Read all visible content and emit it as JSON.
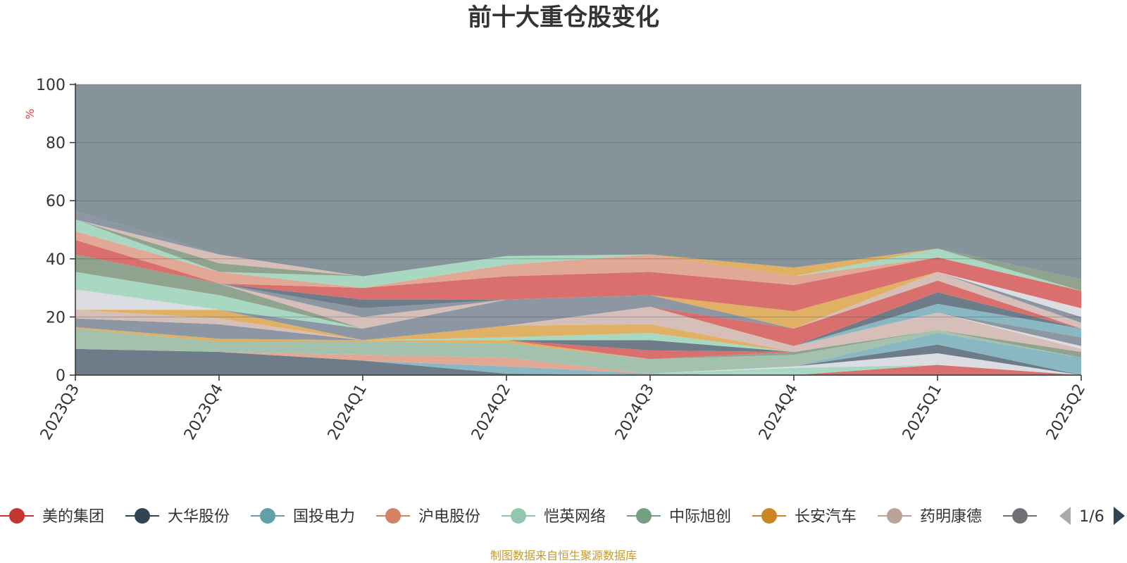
{
  "chart_data": {
    "type": "area",
    "stacked": true,
    "title": "前十大重仓股变化",
    "ylabel": "%",
    "ylim": [
      0,
      100
    ],
    "yticks": [
      0,
      20,
      40,
      60,
      80,
      100
    ],
    "grid": true,
    "x": [
      "2023Q3",
      "2023Q4",
      "2024Q1",
      "2024Q2",
      "2024Q3",
      "2024Q4",
      "2025Q1",
      "2025Q2"
    ],
    "series": [
      {
        "name": "",
        "color": "#6e7c8a",
        "values": [
          9,
          8,
          5,
          0.5,
          0,
          0,
          0,
          0
        ]
      },
      {
        "name": "",
        "color": "#8ab8c2",
        "values": [
          0,
          0,
          0,
          2.5,
          0.5,
          0,
          0,
          0
        ]
      },
      {
        "name": "",
        "color": "#e2a896",
        "values": [
          0,
          0,
          2,
          3,
          0,
          0,
          0,
          0
        ]
      },
      {
        "name": "美的集团",
        "color": "#d9706d",
        "values": [
          0,
          0,
          0,
          0,
          0,
          0,
          3.5,
          0
        ]
      },
      {
        "name": "",
        "color": "#a8d8c1",
        "values": [
          0,
          0,
          0,
          0,
          0,
          2.5,
          0,
          0
        ]
      },
      {
        "name": "",
        "color": "#dcdde3",
        "values": [
          0,
          0,
          0,
          0,
          0,
          0.5,
          4,
          0
        ]
      },
      {
        "name": "",
        "color": "#6e7c8a",
        "values": [
          0,
          0,
          0,
          0,
          0,
          0,
          3,
          0
        ]
      },
      {
        "name": "",
        "color": "#8ab8c2",
        "values": [
          0,
          0,
          0,
          0,
          0,
          0,
          4,
          6
        ]
      },
      {
        "name": "",
        "color": "#a3c1ad",
        "values": [
          7,
          3.5,
          4.5,
          5,
          5,
          4,
          1,
          0
        ]
      },
      {
        "name": "",
        "color": "#e0b065",
        "values": [
          0.5,
          1,
          0.5,
          1,
          0,
          0,
          0,
          0
        ]
      },
      {
        "name": "",
        "color": "#8fa38f",
        "values": [
          0,
          0,
          0,
          0,
          0,
          1,
          0,
          2
        ]
      },
      {
        "name": "",
        "color": "#d9706d",
        "values": [
          0,
          0,
          0,
          0,
          3,
          0,
          0,
          0
        ]
      },
      {
        "name": "",
        "color": "#6e7c8a",
        "values": [
          0,
          0,
          0,
          0,
          3.5,
          0,
          0,
          0
        ]
      },
      {
        "name": "",
        "color": "#a8d8c1",
        "values": [
          0,
          0,
          0,
          1,
          2.5,
          0,
          0,
          0
        ]
      },
      {
        "name": "",
        "color": "#d6bfb8",
        "values": [
          0,
          0,
          0,
          0,
          0,
          0,
          6,
          1
        ]
      },
      {
        "name": "",
        "color": "#e0b065",
        "values": [
          0,
          0,
          0,
          4,
          3,
          0,
          0,
          0
        ]
      },
      {
        "name": "",
        "color": "#dcdde3",
        "values": [
          0,
          0,
          0,
          0,
          0,
          0,
          0,
          1
        ]
      },
      {
        "name": "",
        "color": "#8c97a3",
        "values": [
          3,
          5,
          0,
          0,
          0,
          0,
          0,
          3
        ]
      },
      {
        "name": "",
        "color": "#d6bfb8",
        "values": [
          3,
          2,
          0,
          0,
          6,
          2,
          0,
          0
        ]
      },
      {
        "name": "",
        "color": "#e0b065",
        "values": [
          0,
          3,
          0,
          0,
          0,
          0,
          0,
          0
        ]
      },
      {
        "name": "",
        "color": "#8ab8c2",
        "values": [
          0,
          0,
          0,
          0,
          0,
          0,
          3,
          3
        ]
      },
      {
        "name": "",
        "color": "#6e7c8a",
        "values": [
          0,
          0,
          0,
          0,
          0,
          0,
          4,
          0
        ]
      },
      {
        "name": "",
        "color": "#d9706d",
        "values": [
          0,
          0,
          0,
          0,
          0,
          6,
          4,
          0
        ]
      },
      {
        "name": "",
        "color": "#8c97a3",
        "values": [
          0,
          0,
          4,
          9,
          4,
          0,
          0,
          0
        ]
      },
      {
        "name": "",
        "color": "#dcdde3",
        "values": [
          7,
          0,
          0,
          0,
          0,
          0,
          0,
          0
        ]
      },
      {
        "name": "",
        "color": "#a8d8c1",
        "values": [
          6,
          5,
          0,
          0,
          0,
          0,
          0,
          0
        ]
      },
      {
        "name": "",
        "color": "#8fa38f",
        "values": [
          6,
          4,
          0,
          0,
          0,
          0,
          0,
          0
        ]
      },
      {
        "name": "",
        "color": "#d6bfb8",
        "values": [
          0,
          0,
          4,
          0,
          0,
          0,
          3,
          2
        ]
      },
      {
        "name": "",
        "color": "#8c97a3",
        "values": [
          0,
          0,
          3,
          0,
          0,
          0,
          0,
          2
        ]
      },
      {
        "name": "",
        "color": "#dcdde3",
        "values": [
          0,
          0,
          0,
          0,
          0,
          0,
          0,
          3
        ]
      },
      {
        "name": "",
        "color": "#e0b065",
        "values": [
          0,
          0,
          0,
          0,
          0,
          6,
          0,
          0
        ]
      },
      {
        "name": "",
        "color": "#6e7c8a",
        "values": [
          0,
          0,
          3,
          0,
          0,
          0,
          0,
          0
        ]
      },
      {
        "name": "",
        "color": "#d9706d",
        "values": [
          5,
          0,
          4,
          8,
          8,
          9,
          5,
          6
        ]
      },
      {
        "name": "",
        "color": "#e2a896",
        "values": [
          3,
          4,
          0,
          4,
          6,
          3,
          0,
          0
        ]
      },
      {
        "name": "",
        "color": "#a8d8c1",
        "values": [
          4,
          0,
          4,
          3,
          0,
          0,
          3,
          0
        ]
      },
      {
        "name": "",
        "color": "#8fa38f",
        "values": [
          0,
          3,
          0,
          0,
          0,
          0,
          0,
          4
        ]
      },
      {
        "name": "",
        "color": "#e0b065",
        "values": [
          0,
          0,
          0,
          0,
          0,
          3,
          0,
          0
        ]
      },
      {
        "name": "",
        "color": "#d6bfb8",
        "values": [
          0,
          3,
          0,
          0,
          0,
          0,
          0,
          0
        ]
      },
      {
        "name": "",
        "color": "#8c97a3",
        "values": [
          3,
          0,
          0,
          0,
          0,
          0,
          0,
          0
        ]
      },
      {
        "name": "",
        "color": "#86939b",
        "values": [
          0,
          0,
          0,
          0,
          0,
          0,
          0,
          0
        ],
        "fill_to_max": true
      }
    ],
    "legend": {
      "position": "bottom",
      "items": [
        {
          "name": "美的集团",
          "color": "#c23531"
        },
        {
          "name": "大华股份",
          "color": "#2f4554"
        },
        {
          "name": "国投电力",
          "color": "#61a0a8"
        },
        {
          "name": "沪电股份",
          "color": "#d48265"
        },
        {
          "name": "恺英网络",
          "color": "#91c7ae"
        },
        {
          "name": "中际旭创",
          "color": "#749f83"
        },
        {
          "name": "长安汽车",
          "color": "#ca8622"
        },
        {
          "name": "药明康德",
          "color": "#bda29a"
        },
        {
          "name": "",
          "color": "#6e7074"
        }
      ],
      "page": "1/6"
    }
  },
  "source_note": "制图数据来自恒生聚源数据库"
}
